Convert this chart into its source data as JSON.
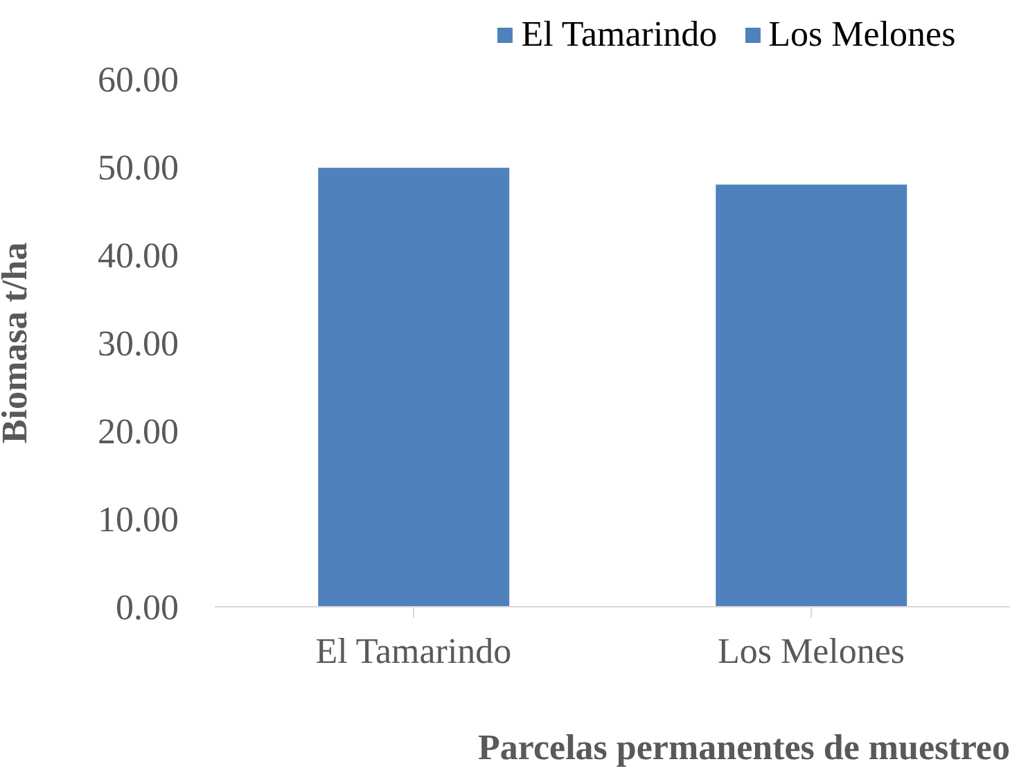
{
  "chart_data": {
    "type": "bar",
    "xlabel": "Parcelas permanentes de muestreo",
    "ylabel": "Biomasa t/ha",
    "categories": [
      "El Tamarindo",
      "Los Melones"
    ],
    "stacked": true,
    "series": [
      {
        "name": "El Tamarindo",
        "color": "#4f81bd",
        "values": [
          49.9,
          null
        ]
      },
      {
        "name": "Los Melones",
        "color": "#4f81bd",
        "values": [
          null,
          48.0
        ]
      }
    ],
    "ylim": [
      0,
      60
    ],
    "yticks": [
      {
        "value": 0,
        "label": "0.00"
      },
      {
        "value": 10,
        "label": "10.00"
      },
      {
        "value": 20,
        "label": "20.00"
      },
      {
        "value": 30,
        "label": "30.00"
      },
      {
        "value": 40,
        "label": "40.00"
      },
      {
        "value": 50,
        "label": "50.00"
      },
      {
        "value": 60,
        "label": "60.00"
      }
    ],
    "grid": false,
    "legend": "top"
  }
}
